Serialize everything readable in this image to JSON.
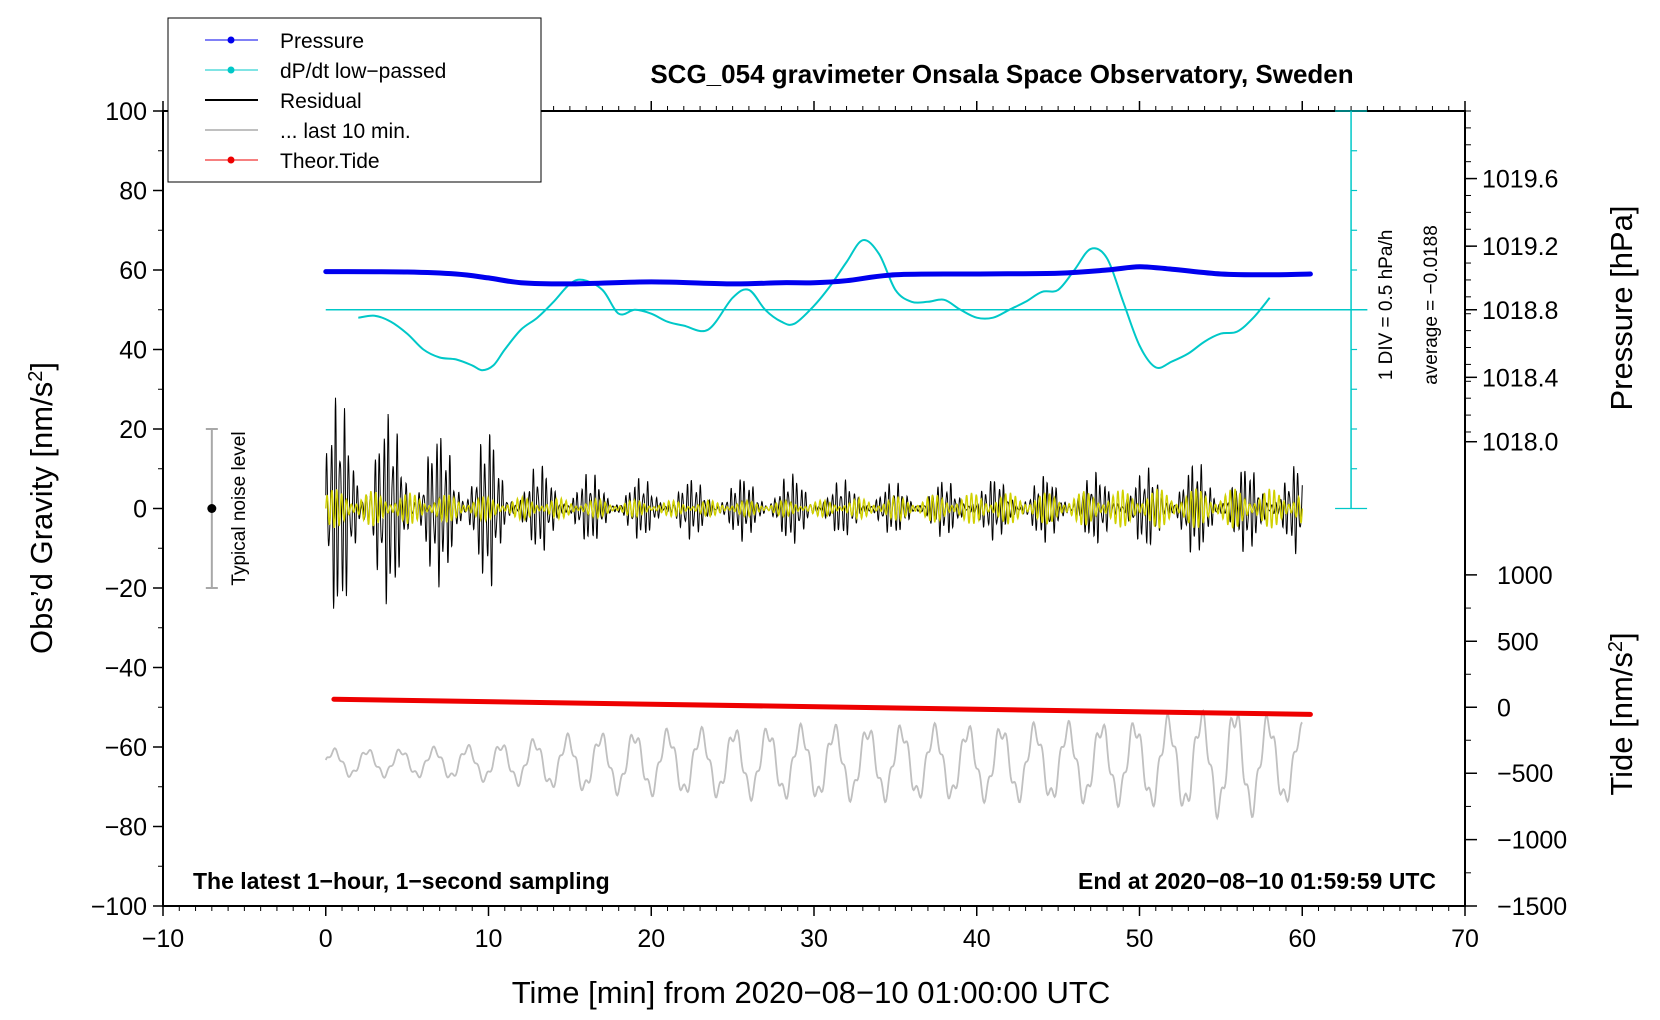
{
  "chart_data": {
    "type": "line",
    "title": "SCG_054 gravimeter Onsala Space Observatory, Sweden",
    "xlabel": "Time [min] from 2020−08−10 01:00:00 UTC",
    "ylabel": "Obs’d Gravity [nm/s",
    "ylabel_sup": "2",
    "ylabel_close": "]",
    "y2label": "Pressure [hPa]",
    "y3label": "Tide [nm/s",
    "y3label_sup": "2",
    "y3label_close": "]",
    "xlim": [
      -10,
      70
    ],
    "ylim": [
      -100,
      100
    ],
    "x_ticks": [
      "−10",
      "0",
      "10",
      "20",
      "30",
      "40",
      "50",
      "60",
      "70"
    ],
    "x_tick_values": [
      -10,
      0,
      10,
      20,
      30,
      40,
      50,
      60,
      70
    ],
    "y_ticks": [
      "100",
      "80",
      "60",
      "40",
      "20",
      "0",
      "−20",
      "−40",
      "−60",
      "−80",
      "−100"
    ],
    "y_tick_values": [
      100,
      80,
      60,
      40,
      20,
      0,
      -20,
      -40,
      -60,
      -80,
      -100
    ],
    "pressure_axis": {
      "ticks": [
        "1019.6",
        "1019.2",
        "1018.8",
        "1018.4",
        "1018.0"
      ],
      "tick_values": [
        1019.6,
        1019.2,
        1018.8,
        1018.4,
        1018.0
      ],
      "gravity_at": [
        83,
        66,
        50,
        33,
        16.8
      ]
    },
    "tide_axis": {
      "ticks": [
        "1000",
        "500",
        "0",
        "−500",
        "−1000",
        "−1500"
      ],
      "tick_values": [
        1000,
        500,
        0,
        -500,
        -1000,
        -1500
      ],
      "gravity_at": [
        -16.7,
        -33.4,
        -50,
        -66.6,
        -83.3,
        -100
      ]
    },
    "legend": {
      "position": "top-left",
      "entries": [
        {
          "label": "Pressure",
          "color": "#0000ee",
          "style": "line-dot"
        },
        {
          "label": "dP/dt low−passed",
          "color": "#00c8c8",
          "style": "line-dot"
        },
        {
          "label": "Residual",
          "color": "#000000",
          "style": "line"
        },
        {
          "label": "... last 10 min.",
          "color": "#c0c0c0",
          "style": "line"
        },
        {
          "label": "Theor.Tide",
          "color": "#ee0000",
          "style": "line-dot"
        }
      ]
    },
    "series": [
      {
        "name": "Pressure",
        "color": "#0000ee",
        "x": [
          0,
          5,
          8,
          10,
          12,
          15,
          20,
          25,
          28,
          30,
          32,
          35,
          40,
          45,
          48,
          50,
          52,
          55,
          58,
          60.5
        ],
        "y": [
          59.6,
          59.5,
          59.0,
          58.0,
          56.8,
          56.5,
          57.0,
          56.5,
          56.8,
          56.8,
          57.3,
          58.8,
          59.0,
          59.2,
          60.0,
          60.8,
          60.2,
          59.0,
          58.8,
          59.0
        ]
      },
      {
        "name": "dP/dt low−passed",
        "color": "#00c8c8",
        "x": [
          2,
          3,
          4,
          5,
          6,
          7,
          8,
          9,
          9.6,
          10.3,
          11,
          12,
          13,
          14,
          15,
          15.8,
          17,
          18,
          19,
          20,
          21,
          22,
          23.5,
          25,
          26,
          27,
          28,
          28.8,
          30,
          31,
          32,
          33,
          34,
          35,
          36,
          37,
          38,
          39,
          40,
          41,
          42,
          43,
          44,
          45,
          46,
          47,
          48,
          49,
          50,
          51,
          52,
          53,
          54,
          55,
          56,
          57,
          58
        ],
        "y": [
          48,
          48.5,
          47,
          44,
          40,
          38,
          37.5,
          36,
          34.8,
          36,
          40,
          45,
          48,
          52,
          56.5,
          57.5,
          55,
          49,
          50,
          49,
          47,
          46,
          45,
          53,
          55,
          50,
          47,
          46.5,
          51,
          56,
          62,
          67.5,
          64,
          55,
          52,
          52,
          52.5,
          50,
          48,
          48,
          50,
          52,
          54.5,
          55,
          60,
          65.3,
          63,
          52,
          41,
          35.5,
          37,
          39,
          42,
          44,
          44.5,
          48,
          53
        ]
      },
      {
        "name": "dP/dt average",
        "color": "#00c8c8",
        "x": [
          0,
          64
        ],
        "y": [
          50,
          50
        ]
      },
      {
        "name": "Residual",
        "color": "#000000",
        "x": [
          0,
          60
        ],
        "envelope_x": [
          0,
          1,
          3,
          5,
          7,
          9,
          10,
          11,
          13,
          15,
          20,
          25,
          28,
          30,
          35,
          40,
          45,
          50,
          52,
          55,
          58,
          60
        ],
        "envelope_amp": [
          28,
          30,
          26,
          24,
          20,
          22,
          22,
          12,
          12,
          10,
          8,
          8,
          10,
          8,
          7,
          8,
          9,
          10,
          13,
          12,
          11,
          12
        ]
      },
      {
        "name": "Residual filtered",
        "color": "#d0d000",
        "x": [
          0,
          60
        ],
        "envelope_x": [
          0,
          5,
          10,
          20,
          30,
          40,
          45,
          50,
          55,
          60
        ],
        "envelope_amp": [
          5,
          4,
          3,
          2,
          2,
          4,
          4,
          5,
          5,
          5
        ]
      },
      {
        "name": "... last 10 min.",
        "color": "#c0c0c0",
        "x": [
          0,
          60
        ],
        "center": -64,
        "envelope_x": [
          0,
          5,
          10,
          15,
          20,
          30,
          40,
          50,
          56,
          60
        ],
        "envelope_amp": [
          3,
          3,
          4,
          6,
          7,
          8,
          8,
          9,
          12,
          8
        ]
      },
      {
        "name": "Theor.Tide",
        "color": "#ee0000",
        "x": [
          0.5,
          60.5
        ],
        "y": [
          -48,
          -51.8
        ]
      }
    ],
    "noise_marker": {
      "x": -7,
      "y": 0,
      "range": [
        -20,
        20
      ],
      "label": "Typical noise level"
    },
    "annotations": {
      "div": "1 DIV = 0.5 hPa/h",
      "average": "average = −0.0188",
      "bottom_left": "The latest 1−hour, 1−second sampling",
      "bottom_right": "End at 2020−08−10 01:59:59 UTC"
    },
    "grid": false
  }
}
